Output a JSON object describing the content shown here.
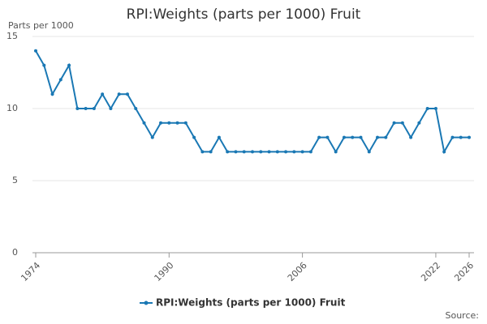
{
  "chart_data": {
    "type": "line",
    "title": "RPI:Weights (parts per 1000) Fruit",
    "y_label": "Parts per 1000",
    "source": "Source:",
    "x": [
      1974,
      1975,
      1976,
      1977,
      1978,
      1979,
      1980,
      1981,
      1982,
      1983,
      1984,
      1985,
      1986,
      1987,
      1988,
      1989,
      1990,
      1991,
      1992,
      1993,
      1994,
      1995,
      1996,
      1997,
      1998,
      1999,
      2000,
      2001,
      2002,
      2003,
      2004,
      2005,
      2006,
      2007,
      2008,
      2009,
      2010,
      2011,
      2012,
      2013,
      2014,
      2015,
      2016,
      2017,
      2018,
      2019,
      2020,
      2021,
      2022,
      2023,
      2024,
      2025,
      2026
    ],
    "series": [
      {
        "name": "RPI:Weights (parts per 1000) Fruit",
        "color": "#1a78b4",
        "values": [
          14,
          13,
          11,
          12,
          13,
          10,
          10,
          10,
          11,
          10,
          11,
          11,
          10,
          9,
          8,
          9,
          9,
          9,
          9,
          8,
          7,
          7,
          8,
          7,
          7,
          7,
          7,
          7,
          7,
          7,
          7,
          7,
          7,
          7,
          8,
          8,
          7,
          8,
          8,
          8,
          7,
          8,
          8,
          9,
          9,
          8,
          9,
          10,
          10,
          7,
          8,
          8,
          8
        ]
      }
    ],
    "xlim": [
      1974,
      2026
    ],
    "xticks": [
      1974,
      1990,
      2006,
      2022,
      2026
    ],
    "ylim": [
      0,
      15
    ],
    "yticks": [
      0,
      5,
      10,
      15
    ],
    "grid": true,
    "legend": "bottom"
  }
}
